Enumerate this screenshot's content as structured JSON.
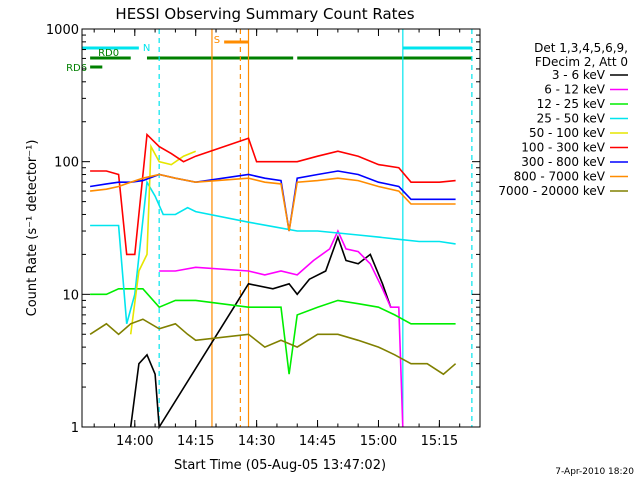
{
  "chart_data": {
    "type": "line",
    "title": "HESSI Observing Summary Count Rates",
    "xlabel": "Start Time (05-Aug-05 13:47:02)",
    "ylabel": "Count Rate (s⁻¹ detector⁻¹)",
    "y_scale": "log",
    "ylim": [
      1,
      1000
    ],
    "xlim": [
      "13:47",
      "15:25"
    ],
    "x_ticks": [
      "14:00",
      "14:15",
      "14:30",
      "14:45",
      "15:00",
      "15:15"
    ],
    "y_ticks": [
      "1",
      "10",
      "100",
      "1000"
    ],
    "legend_header": [
      "Det 1,3,4,5,6,9,",
      "FDecim 2, Att 0"
    ],
    "legend_position": "right",
    "flags": [
      {
        "name": "N",
        "color": "#00e5ee",
        "segments": [
          [
            "13:47",
            "14:01"
          ],
          [
            "15:06",
            "15:23"
          ]
        ]
      },
      {
        "name": "S",
        "color": "#ff8c00",
        "segments": [
          [
            "14:22",
            "14:28"
          ]
        ]
      },
      {
        "name": "RD0",
        "color": "#008000",
        "segments": [
          [
            "13:49",
            "13:59"
          ],
          [
            "14:03",
            "14:39"
          ],
          [
            "14:40",
            "15:23"
          ]
        ]
      },
      {
        "name": "RD6",
        "color": "#008000",
        "segments": [
          [
            "13:49",
            "13:52"
          ]
        ]
      }
    ],
    "vlines": [
      {
        "time": "14:06",
        "color": "#00e5ee",
        "style": "dashed"
      },
      {
        "time": "14:19",
        "color": "#ff8c00",
        "style": "solid"
      },
      {
        "time": "14:26",
        "color": "#ff8c00",
        "style": "dashed"
      },
      {
        "time": "14:28",
        "color": "#ff8c00",
        "style": "solid"
      },
      {
        "time": "15:06",
        "color": "#00e5ee",
        "style": "solid"
      },
      {
        "time": "15:23",
        "color": "#00e5ee",
        "style": "dashed"
      }
    ],
    "series": [
      {
        "name": "3 - 6 keV",
        "color": "#000000",
        "points": [
          [
            "13:59",
            1
          ],
          [
            "14:01",
            3
          ],
          [
            "14:03",
            3.5
          ],
          [
            "14:05",
            2.5
          ],
          [
            "14:06",
            1
          ],
          [
            "14:28",
            12
          ],
          [
            "14:34",
            11
          ],
          [
            "14:38",
            12
          ],
          [
            "14:40",
            10
          ],
          [
            "14:43",
            13
          ],
          [
            "14:47",
            15
          ],
          [
            "14:50",
            27
          ],
          [
            "14:52",
            18
          ],
          [
            "14:55",
            17
          ],
          [
            "14:58",
            20
          ],
          [
            "15:01",
            12
          ],
          [
            "15:03",
            8
          ]
        ]
      },
      {
        "name": "6 - 12 keV",
        "color": "#ff00ff",
        "points": [
          [
            "14:06",
            15
          ],
          [
            "14:10",
            15
          ],
          [
            "14:15",
            16
          ],
          [
            "14:28",
            15
          ],
          [
            "14:32",
            14
          ],
          [
            "14:36",
            15
          ],
          [
            "14:40",
            14
          ],
          [
            "14:44",
            18
          ],
          [
            "14:48",
            22
          ],
          [
            "14:50",
            30
          ],
          [
            "14:52",
            22
          ],
          [
            "14:55",
            21
          ],
          [
            "14:58",
            17
          ],
          [
            "15:01",
            11
          ],
          [
            "15:03",
            8
          ],
          [
            "15:05",
            8
          ],
          [
            "15:06",
            1
          ]
        ]
      },
      {
        "name": "12 - 25 keV",
        "color": "#00ee00",
        "points": [
          [
            "13:49",
            10
          ],
          [
            "13:53",
            10
          ],
          [
            "13:56",
            11
          ],
          [
            "13:59",
            11
          ],
          [
            "14:02",
            11
          ],
          [
            "14:06",
            8
          ],
          [
            "14:10",
            9
          ],
          [
            "14:15",
            9
          ],
          [
            "14:28",
            8
          ],
          [
            "14:32",
            8
          ],
          [
            "14:36",
            8
          ],
          [
            "14:38",
            2.5
          ],
          [
            "14:40",
            7
          ],
          [
            "14:45",
            8
          ],
          [
            "14:50",
            9
          ],
          [
            "14:55",
            8.5
          ],
          [
            "15:00",
            8
          ],
          [
            "15:04",
            7
          ],
          [
            "15:08",
            6
          ],
          [
            "15:12",
            6
          ],
          [
            "15:16",
            6
          ],
          [
            "15:19",
            6
          ]
        ]
      },
      {
        "name": "25 - 50 keV",
        "color": "#00e5ee",
        "points": [
          [
            "13:49",
            33
          ],
          [
            "13:53",
            33
          ],
          [
            "13:56",
            33
          ],
          [
            "13:58",
            6
          ],
          [
            "14:00",
            10
          ],
          [
            "14:03",
            70
          ],
          [
            "14:05",
            55
          ],
          [
            "14:07",
            40
          ],
          [
            "14:10",
            40
          ],
          [
            "14:13",
            45
          ],
          [
            "14:15",
            42
          ],
          [
            "14:28",
            35
          ],
          [
            "14:35",
            32
          ],
          [
            "14:40",
            30
          ],
          [
            "14:45",
            30
          ],
          [
            "14:50",
            29
          ],
          [
            "14:55",
            28
          ],
          [
            "15:00",
            27
          ],
          [
            "15:05",
            26
          ],
          [
            "15:10",
            25
          ],
          [
            "15:15",
            25
          ],
          [
            "15:19",
            24
          ]
        ]
      },
      {
        "name": "50 - 100 keV",
        "color": "#e6e600",
        "points": [
          [
            "13:59",
            5
          ],
          [
            "14:01",
            15
          ],
          [
            "14:03",
            20
          ],
          [
            "14:04",
            130
          ],
          [
            "14:06",
            100
          ],
          [
            "14:09",
            95
          ],
          [
            "14:12",
            110
          ],
          [
            "14:15",
            120
          ]
        ]
      },
      {
        "name": "100 - 300 keV",
        "color": "#ff0000",
        "points": [
          [
            "13:49",
            85
          ],
          [
            "13:53",
            85
          ],
          [
            "13:56",
            80
          ],
          [
            "13:58",
            20
          ],
          [
            "14:00",
            20
          ],
          [
            "14:03",
            160
          ],
          [
            "14:06",
            130
          ],
          [
            "14:09",
            115
          ],
          [
            "14:12",
            100
          ],
          [
            "14:15",
            110
          ],
          [
            "14:28",
            150
          ],
          [
            "14:30",
            100
          ],
          [
            "14:35",
            100
          ],
          [
            "14:40",
            100
          ],
          [
            "14:45",
            110
          ],
          [
            "14:50",
            120
          ],
          [
            "14:55",
            110
          ],
          [
            "15:00",
            95
          ],
          [
            "15:05",
            90
          ],
          [
            "15:08",
            70
          ],
          [
            "15:15",
            70
          ],
          [
            "15:19",
            72
          ]
        ]
      },
      {
        "name": "300 - 800 keV",
        "color": "#0000ff",
        "points": [
          [
            "13:49",
            65
          ],
          [
            "13:53",
            68
          ],
          [
            "13:56",
            70
          ],
          [
            "13:59",
            70
          ],
          [
            "14:02",
            72
          ],
          [
            "14:06",
            80
          ],
          [
            "14:10",
            75
          ],
          [
            "14:15",
            70
          ],
          [
            "14:28",
            80
          ],
          [
            "14:32",
            75
          ],
          [
            "14:36",
            72
          ],
          [
            "14:38",
            30
          ],
          [
            "14:40",
            75
          ],
          [
            "14:45",
            80
          ],
          [
            "14:50",
            85
          ],
          [
            "14:55",
            80
          ],
          [
            "15:00",
            70
          ],
          [
            "15:05",
            65
          ],
          [
            "15:08",
            52
          ],
          [
            "15:15",
            52
          ],
          [
            "15:19",
            52
          ]
        ]
      },
      {
        "name": "800 - 7000 keV",
        "color": "#ff8c00",
        "points": [
          [
            "13:49",
            60
          ],
          [
            "13:53",
            62
          ],
          [
            "13:56",
            65
          ],
          [
            "13:59",
            70
          ],
          [
            "14:02",
            75
          ],
          [
            "14:06",
            80
          ],
          [
            "14:10",
            75
          ],
          [
            "14:15",
            70
          ],
          [
            "14:28",
            75
          ],
          [
            "14:32",
            70
          ],
          [
            "14:36",
            68
          ],
          [
            "14:38",
            30
          ],
          [
            "14:40",
            70
          ],
          [
            "14:45",
            72
          ],
          [
            "14:50",
            75
          ],
          [
            "14:55",
            72
          ],
          [
            "15:00",
            65
          ],
          [
            "15:05",
            60
          ],
          [
            "15:08",
            48
          ],
          [
            "15:15",
            48
          ],
          [
            "15:19",
            48
          ]
        ]
      },
      {
        "name": "7000 - 20000 keV",
        "color": "#808000",
        "points": [
          [
            "13:49",
            5
          ],
          [
            "13:53",
            6
          ],
          [
            "13:56",
            5
          ],
          [
            "13:59",
            6
          ],
          [
            "14:02",
            6.5
          ],
          [
            "14:06",
            5.5
          ],
          [
            "14:10",
            6
          ],
          [
            "14:13",
            5
          ],
          [
            "14:15",
            4.5
          ],
          [
            "14:28",
            5
          ],
          [
            "14:32",
            4
          ],
          [
            "14:36",
            4.5
          ],
          [
            "14:40",
            4
          ],
          [
            "14:45",
            5
          ],
          [
            "14:50",
            5
          ],
          [
            "14:55",
            4.5
          ],
          [
            "15:00",
            4
          ],
          [
            "15:04",
            3.5
          ],
          [
            "15:08",
            3
          ],
          [
            "15:12",
            3
          ],
          [
            "15:16",
            2.5
          ],
          [
            "15:19",
            3
          ]
        ]
      }
    ]
  },
  "footer": {
    "timestamp": "7-Apr-2010 18:20"
  }
}
